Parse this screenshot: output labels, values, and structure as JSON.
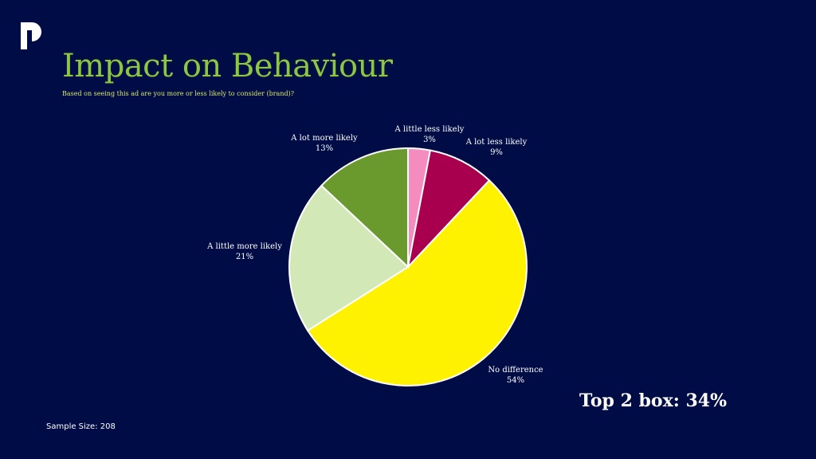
{
  "header": {
    "title": "Impact on Behaviour",
    "subtitle": "Based on seeing this ad are you more or less likely to consider (brand)?"
  },
  "footer": {
    "sample_size": "Sample Size: 208",
    "top_box": "Top 2 box: 34%"
  },
  "chart_data": {
    "type": "pie",
    "slices": [
      {
        "label": "A little less likely",
        "value": 3,
        "value_label": "3%",
        "color": "#f48cc0"
      },
      {
        "label": "A lot less likely",
        "value": 9,
        "value_label": "9%",
        "color": "#a8004f"
      },
      {
        "label": "No difference",
        "value": 54,
        "value_label": "54%",
        "color": "#fff200"
      },
      {
        "label": "A little more likely",
        "value": 21,
        "value_label": "21%",
        "color": "#d3e8b7"
      },
      {
        "label": "A lot more likely",
        "value": 13,
        "value_label": "13%",
        "color": "#6a992d"
      }
    ],
    "legend": "none"
  },
  "colors": {
    "background": "#000c45",
    "title": "#8dc63f",
    "subtitle": "#d8e86b"
  }
}
